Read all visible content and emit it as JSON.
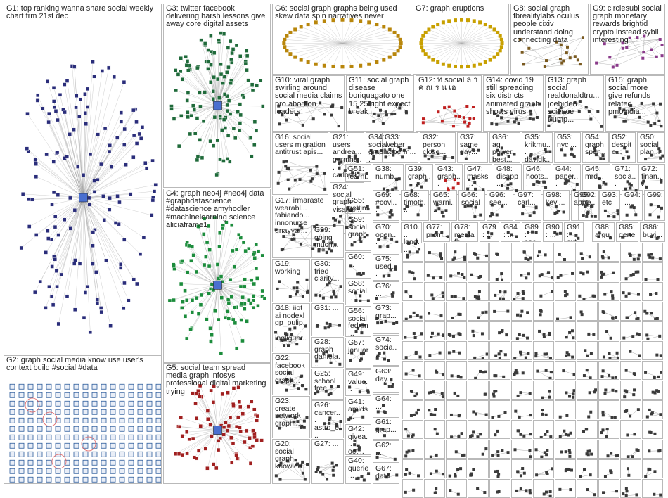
{
  "groups": [
    {
      "id": "G1",
      "label": "G1: top ranking wanna share social weekly chart frm 21st dec",
      "hub": true,
      "color": "#2a2d7a"
    },
    {
      "id": "G2",
      "label": "G2: graph social media know use user's context build #social #data",
      "grid": true,
      "color": "#2a5a9a"
    },
    {
      "id": "G3",
      "label": "G3: twitter facebook delivering harsh lessons give away core digital assets",
      "hub": true,
      "color": "#1f6a3a"
    },
    {
      "id": "G4",
      "label": "G4: graph neo4j #neo4j data #graphdatascience #datascience amyhodler #machinelearning science aliciaframe1",
      "hub": true,
      "color": "#1c8c3c"
    },
    {
      "id": "G5",
      "label": "G5: social team spread media graph infosys professional digital marketing trying",
      "hub": true,
      "color": "#a02020"
    },
    {
      "id": "G6",
      "label": "G6: social graph graphs being used skew data spin narratives never",
      "ring": true,
      "color": "#b8860b"
    },
    {
      "id": "G7",
      "label": "G7: graph eruptions",
      "ring": true,
      "color": "#c8a000"
    },
    {
      "id": "G8",
      "label": "G8: social graph fbrealitylabs oculus people cixiv understand doing connecting data",
      "color": "#7a5a20"
    },
    {
      "id": "G9",
      "label": "G9: circlesubi social graph monetary rewards brightid crypto instead sybil interesting",
      "color": "#8a3a8a"
    },
    {
      "id": "G10",
      "label": "G10: viral graph swirling around social media claims pro abortion leaders",
      "color": "#3a3a3a"
    },
    {
      "id": "G11",
      "label": "G11: social graph disease boriquagato one 15 25 right expect break",
      "color": "#3a3a3a"
    },
    {
      "id": "G12",
      "label": "G12: ท social ล า ค ณ ร น เอ",
      "color": "#c02020"
    },
    {
      "id": "G14",
      "label": "G14: covid 19 still spreading six districts animated graph shows virus",
      "color": "#3a3a3a"
    },
    {
      "id": "G13",
      "label": "G13: graph social realdonaldtru... joebiden science trump...",
      "color": "#3a3a3a"
    },
    {
      "id": "G15",
      "label": "G15: graph social more give refunds related pmoindia...",
      "color": "#3a3a3a"
    },
    {
      "id": "G16",
      "label": "G16: social users migration antitrust apis...",
      "color": "#3a3a3a"
    },
    {
      "id": "G21",
      "label": "G21: users andrea... germhu... carlosd...",
      "color": "#3a3a3a"
    },
    {
      "id": "G34",
      "label": "G34: social graph...",
      "color": "#3a3a3a"
    },
    {
      "id": "G33",
      "label": "G33: weber haberm...",
      "color": "#3a3a3a"
    },
    {
      "id": "G32",
      "label": "G32: person close...",
      "color": "#3a3a3a"
    },
    {
      "id": "G37",
      "label": "G37: same day...",
      "color": "#3a3a3a"
    },
    {
      "id": "G36",
      "label": "G36: ag power best...",
      "color": "#3a3a3a"
    },
    {
      "id": "G35",
      "label": "G35: krikmu... davidk...",
      "color": "#3a3a3a"
    },
    {
      "id": "G53",
      "label": "G53: nyc ...",
      "color": "#3a3a3a"
    },
    {
      "id": "G54",
      "label": "G54: graph spen...",
      "color": "#3a3a3a"
    },
    {
      "id": "G52",
      "label": "G52: despite...",
      "color": "#3a3a3a"
    },
    {
      "id": "G50",
      "label": "G50: social plan...",
      "color": "#3a3a3a"
    },
    {
      "id": "G24",
      "label": "G24: social graph visakan...",
      "color": "#3a3a3a"
    },
    {
      "id": "G51",
      "label": "G51: learni...",
      "color": "#3a3a3a"
    },
    {
      "id": "G38",
      "label": "G38: numb...",
      "color": "#3a3a3a"
    },
    {
      "id": "G39",
      "label": "G39: graph...",
      "color": "#3a3a3a"
    },
    {
      "id": "G43",
      "label": "G43: graph...",
      "color": "#c02020"
    },
    {
      "id": "G47",
      "label": "G47: masks...",
      "color": "#3a3a3a"
    },
    {
      "id": "G48",
      "label": "G48: disapp...",
      "color": "#3a3a3a"
    },
    {
      "id": "G46",
      "label": "G46: hoots...",
      "color": "#3a3a3a"
    },
    {
      "id": "G44",
      "label": "G44: paper...",
      "color": "#3a3a3a"
    },
    {
      "id": "G45",
      "label": "G45: mrd...",
      "color": "#3a3a3a"
    },
    {
      "id": "G71",
      "label": "G71: socia...",
      "color": "#3a3a3a"
    },
    {
      "id": "G72",
      "label": "G72: finan...",
      "color": "#3a3a3a"
    },
    {
      "id": "G17",
      "label": "G17: irmaraste wearabl... fabiando... innonurse gnayyar...",
      "color": "#3a3a3a"
    },
    {
      "id": "G55",
      "label": "G55: gettin...",
      "color": "#3a3a3a"
    },
    {
      "id": "G69",
      "label": "G69: #covi...",
      "color": "#3a3a3a"
    },
    {
      "id": "G68",
      "label": "G68: timoth...",
      "color": "#3a3a3a"
    },
    {
      "id": "G65",
      "label": "G65: warni...",
      "color": "#3a3a3a"
    },
    {
      "id": "G66",
      "label": "G66: social",
      "color": "#3a3a3a"
    },
    {
      "id": "G96",
      "label": "G96: see...",
      "color": "#3a3a3a"
    },
    {
      "id": "G97",
      "label": "G97: carl...",
      "color": "#3a3a3a"
    },
    {
      "id": "G98",
      "label": "G98: kevi...",
      "color": "#3a3a3a"
    },
    {
      "id": "G95",
      "label": "G95: appt...",
      "color": "#3a3a3a"
    },
    {
      "id": "G92",
      "label": "G92: the...",
      "color": "#3a3a3a"
    },
    {
      "id": "G93",
      "label": "G93: etc",
      "color": "#3a3a3a"
    },
    {
      "id": "G94",
      "label": "G94: ...",
      "color": "#3a3a3a"
    },
    {
      "id": "G99",
      "label": "G99: ...",
      "color": "#3a3a3a"
    },
    {
      "id": "G29",
      "label": "G29: going much...",
      "color": "#3a3a3a"
    },
    {
      "id": "G59",
      "label": "G59: social graph...",
      "color": "#3a3a3a"
    },
    {
      "id": "G70",
      "label": "G70: open...",
      "color": "#3a3a3a"
    },
    {
      "id": "G10x",
      "label": "G10... lond...",
      "color": "#3a3a3a"
    },
    {
      "id": "G77",
      "label": "G77: prom...",
      "color": "#3a3a3a"
    },
    {
      "id": "G78",
      "label": "G78: mediafb...",
      "color": "#3a3a3a"
    },
    {
      "id": "G79",
      "label": "G79: ...",
      "color": "#3a3a3a"
    },
    {
      "id": "G84",
      "label": "G84: ...",
      "color": "#3a3a3a"
    },
    {
      "id": "G89",
      "label": "G89: soci...",
      "color": "#3a3a3a"
    },
    {
      "id": "G90",
      "label": "G90: ...",
      "color": "#3a3a3a"
    },
    {
      "id": "G91",
      "label": "G91: cut...",
      "color": "#3a3a3a"
    },
    {
      "id": "G88",
      "label": "G88: argu...",
      "color": "#3a3a3a"
    },
    {
      "id": "G85",
      "label": "G85: gene...",
      "color": "#3a3a3a"
    },
    {
      "id": "G86",
      "label": "G86: buyi...",
      "color": "#3a3a3a"
    },
    {
      "id": "G19",
      "label": "G19: working",
      "color": "#3a3a3a"
    },
    {
      "id": "G30",
      "label": "G30: fried clarity...",
      "color": "#3a3a3a"
    },
    {
      "id": "G60",
      "label": "G60: ...",
      "color": "#3a3a3a"
    },
    {
      "id": "G75",
      "label": "G75: used...",
      "color": "#3a3a3a"
    },
    {
      "id": "G58",
      "label": "G58: social...",
      "color": "#3a3a3a"
    },
    {
      "id": "G76",
      "label": "G76: ...",
      "color": "#3a3a3a"
    },
    {
      "id": "G18",
      "label": "G18: iiot ai nodexl gp_pulip... ingliguor...",
      "color": "#3a3a3a"
    },
    {
      "id": "G31",
      "label": "G31: ...",
      "color": "#3a3a3a"
    },
    {
      "id": "G56",
      "label": "G56: social fedxm...",
      "color": "#3a3a3a"
    },
    {
      "id": "G73",
      "label": "G73: grap...",
      "color": "#3a3a3a"
    },
    {
      "id": "G74",
      "label": "G74: socia...",
      "color": "#3a3a3a"
    },
    {
      "id": "G28",
      "label": "G28: graph daniela...",
      "color": "#3a3a3a"
    },
    {
      "id": "G57",
      "label": "G57: januar...",
      "color": "#3a3a3a"
    },
    {
      "id": "G63",
      "label": "G63: day...",
      "color": "#3a3a3a"
    },
    {
      "id": "G22",
      "label": "G22: facebook social graph...",
      "color": "#3a3a3a"
    },
    {
      "id": "G25",
      "label": "G25: school free...",
      "color": "#3a3a3a"
    },
    {
      "id": "G49",
      "label": "G49: value...",
      "color": "#3a3a3a"
    },
    {
      "id": "G64",
      "label": "G64: ...",
      "color": "#3a3a3a"
    },
    {
      "id": "G23",
      "label": "G23: create network graph...",
      "color": "#3a3a3a"
    },
    {
      "id": "G41",
      "label": "G41: amids...",
      "color": "#3a3a3a"
    },
    {
      "id": "G61",
      "label": "G61: grap...",
      "color": "#3a3a3a"
    },
    {
      "id": "G26",
      "label": "G26: cancer... astro_o...",
      "color": "#3a3a3a"
    },
    {
      "id": "G42",
      "label": "G42: givea... oct...",
      "color": "#3a3a3a"
    },
    {
      "id": "G62",
      "label": "G62: ...",
      "color": "#3a3a3a"
    },
    {
      "id": "G20",
      "label": "G20: social graph knowled...",
      "color": "#3a3a3a"
    },
    {
      "id": "G27",
      "label": "G27: ...",
      "color": "#3a3a3a"
    },
    {
      "id": "G40",
      "label": "G40: querie...",
      "color": "#3a3a3a"
    },
    {
      "id": "G67",
      "label": "G67: data",
      "color": "#3a3a3a"
    }
  ]
}
